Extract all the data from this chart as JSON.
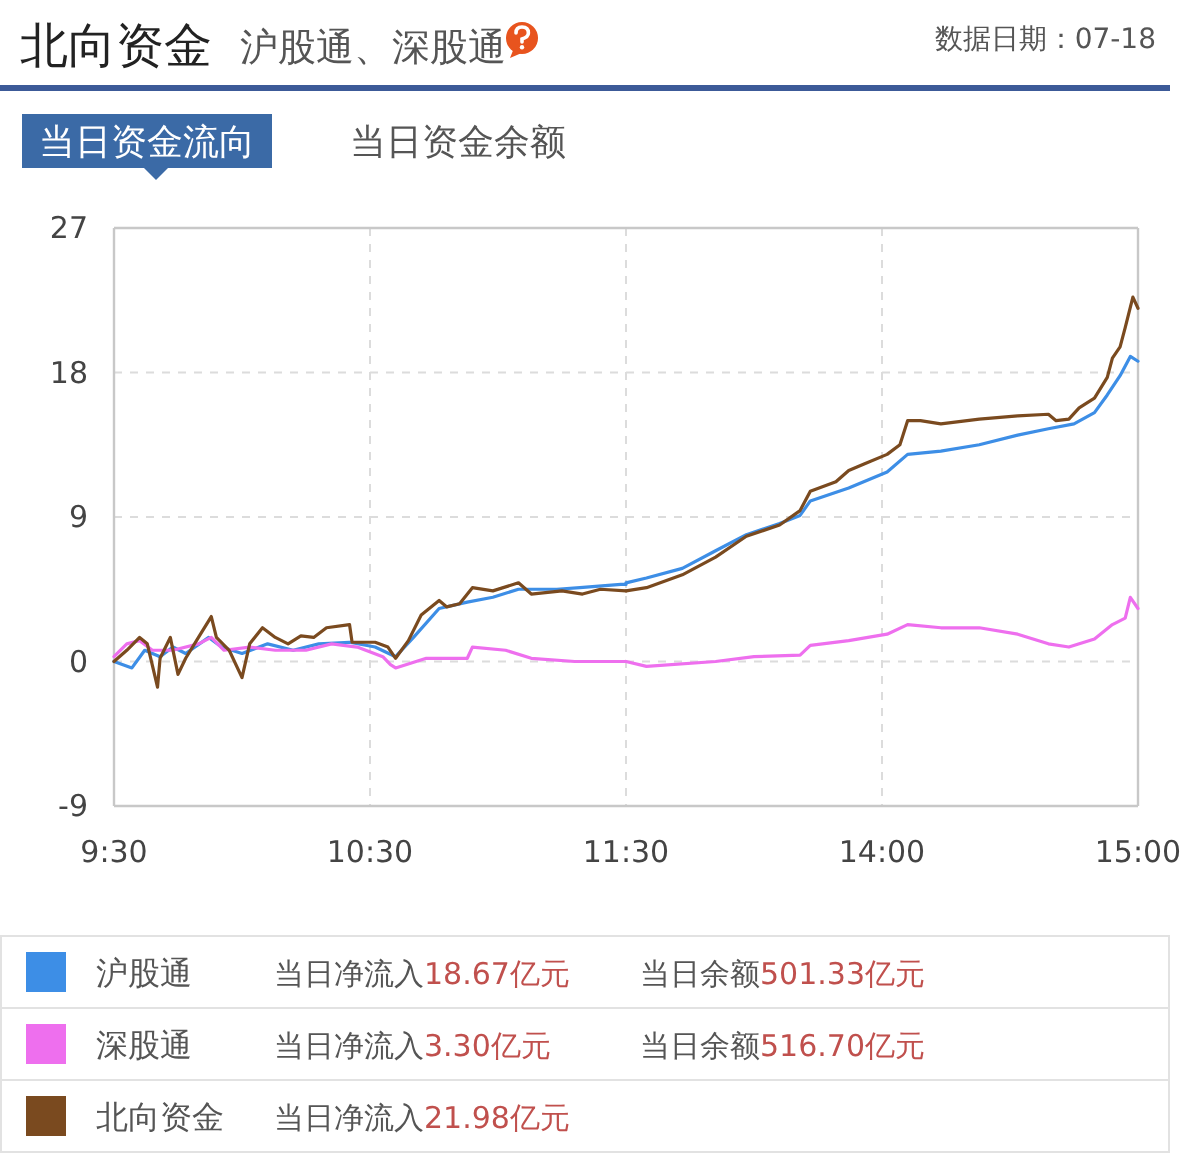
{
  "chart_data": [
    {
      "type": "line",
      "title": "北向资金",
      "subtitle": "沪股通、深股通",
      "annotations": [
        "数据日期：07-18",
        "当日资金流向",
        "当日资金余额",
        "当日净流入18.67亿元",
        "当日余额501.33亿元",
        "当日净流入3.30亿元",
        "当日余额516.70亿元",
        "当日净流入21.98亿元"
      ],
      "xlim": [
        9.5,
        11.5
      ],
      "xticks": [
        {
          "value": 9.5,
          "label": "9:30"
        },
        {
          "value": 10.5,
          "label": "10:30"
        },
        {
          "value": 11.5,
          "label": "11:30"
        }
      ],
      "ylim": [
        -9,
        27
      ],
      "yticks": [
        -9,
        0,
        9,
        18,
        27
      ],
      "grid": true,
      "legend": "bottom",
      "series": [
        {
          "name": "沪股通",
          "color": "#3d8ee6",
          "x": [
            9.5,
            9.57,
            9.62,
            9.68,
            9.73,
            9.78,
            9.87,
            9.92,
            10.0,
            10.1,
            10.2,
            10.3,
            10.42,
            10.52,
            10.6,
            10.67,
            10.77,
            10.88,
            10.98,
            11.08,
            11.23,
            11.32,
            11.48,
            11.5
          ],
          "values": [
            0,
            -0.4,
            0.7,
            0.3,
            0.9,
            0.5,
            1.5,
            0.9,
            0.5,
            1.1,
            0.7,
            1.1,
            1.2,
            0.9,
            0.3,
            1.5,
            3.3,
            3.7,
            4.0,
            4.5,
            4.5,
            4.6,
            4.8,
            4.8
          ]
        },
        {
          "name": "深股通",
          "color": "#ee6fee",
          "x": [
            9.5,
            9.55,
            9.6,
            9.65,
            9.73,
            9.83,
            9.88,
            9.93,
            10.03,
            10.13,
            10.25,
            10.35,
            10.45,
            10.55,
            10.58,
            10.6,
            10.72,
            10.88,
            10.9,
            11.03,
            11.13,
            11.3,
            11.48,
            11.5
          ],
          "values": [
            0.3,
            1.1,
            1.3,
            0.7,
            0.7,
            1.1,
            1.5,
            0.7,
            0.9,
            0.7,
            0.7,
            1.1,
            0.9,
            0.3,
            -0.2,
            -0.4,
            0.2,
            0.2,
            0.9,
            0.7,
            0.2,
            0,
            0,
            0
          ]
        },
        {
          "name": "北向资金",
          "color": "#7a4a1f",
          "x": [
            9.5,
            9.55,
            9.6,
            9.63,
            9.67,
            9.68,
            9.72,
            9.75,
            9.78,
            9.83,
            9.88,
            9.9,
            9.95,
            10.0,
            10.03,
            10.08,
            10.13,
            10.18,
            10.23,
            10.28,
            10.33,
            10.42,
            10.43,
            10.52,
            10.57,
            10.6,
            10.65,
            10.7,
            10.77,
            10.8,
            10.85,
            10.9,
            10.98,
            11.08,
            11.13,
            11.25,
            11.33,
            11.4,
            11.5
          ],
          "values": [
            0,
            0.7,
            1.5,
            1.1,
            -1.6,
            0.2,
            1.5,
            -0.8,
            0.2,
            1.5,
            2.8,
            1.5,
            0.7,
            -1.0,
            1.1,
            2.1,
            1.5,
            1.1,
            1.6,
            1.5,
            2.1,
            2.3,
            1.2,
            1.2,
            0.9,
            0.2,
            1.3,
            2.9,
            3.8,
            3.4,
            3.6,
            4.6,
            4.4,
            4.9,
            4.2,
            4.4,
            4.2,
            4.5,
            4.4
          ]
        }
      ]
    },
    {
      "type": "line",
      "tick_labels": "x",
      "xlim": [
        13,
        15
      ],
      "xticks": [
        {
          "value": 14,
          "label": "14:00"
        },
        {
          "value": 15,
          "label": "15:00"
        }
      ],
      "ylim": [
        -9,
        27
      ],
      "yticks": [
        -9,
        0,
        9,
        18,
        27
      ],
      "grid": true,
      "series": [
        {
          "color": "#3d8ee6",
          "x": [
            13.0,
            13.08,
            13.22,
            13.35,
            13.47,
            13.6,
            13.68,
            13.72,
            13.87,
            14.02,
            14.1,
            14.23,
            14.38,
            14.53,
            14.65,
            14.75,
            14.83,
            14.88,
            14.93,
            14.97,
            15.0
          ],
          "values": [
            4.9,
            5.2,
            5.8,
            6.9,
            7.9,
            8.6,
            9.1,
            10.0,
            10.8,
            11.8,
            12.9,
            13.1,
            13.5,
            14.1,
            14.5,
            14.8,
            15.5,
            16.6,
            17.8,
            19.0,
            18.7
          ]
        },
        {
          "color": "#ee6fee",
          "x": [
            13.0,
            13.08,
            13.35,
            13.5,
            13.68,
            13.72,
            13.87,
            14.02,
            14.1,
            14.23,
            14.38,
            14.53,
            14.65,
            14.73,
            14.83,
            14.9,
            14.95,
            14.97,
            15.0
          ],
          "values": [
            0,
            -0.3,
            0,
            0.3,
            0.4,
            1.0,
            1.3,
            1.7,
            2.3,
            2.1,
            2.1,
            1.7,
            1.1,
            0.9,
            1.4,
            2.3,
            2.7,
            4.0,
            3.3
          ]
        },
        {
          "color": "#7a4a1f",
          "x": [
            13.0,
            13.08,
            13.22,
            13.35,
            13.47,
            13.6,
            13.68,
            13.72,
            13.82,
            13.87,
            13.93,
            14.02,
            14.07,
            14.1,
            14.15,
            14.23,
            14.38,
            14.53,
            14.65,
            14.68,
            14.73,
            14.77,
            14.83,
            14.88,
            14.9,
            14.93,
            14.95,
            14.98,
            15.0
          ],
          "values": [
            4.4,
            4.6,
            5.4,
            6.5,
            7.8,
            8.5,
            9.4,
            10.6,
            11.2,
            11.9,
            12.3,
            12.9,
            13.5,
            15.0,
            15.0,
            14.8,
            15.1,
            15.3,
            15.4,
            15.0,
            15.1,
            15.8,
            16.4,
            17.7,
            18.9,
            19.6,
            20.8,
            22.7,
            22.0
          ]
        }
      ]
    }
  ]
}
